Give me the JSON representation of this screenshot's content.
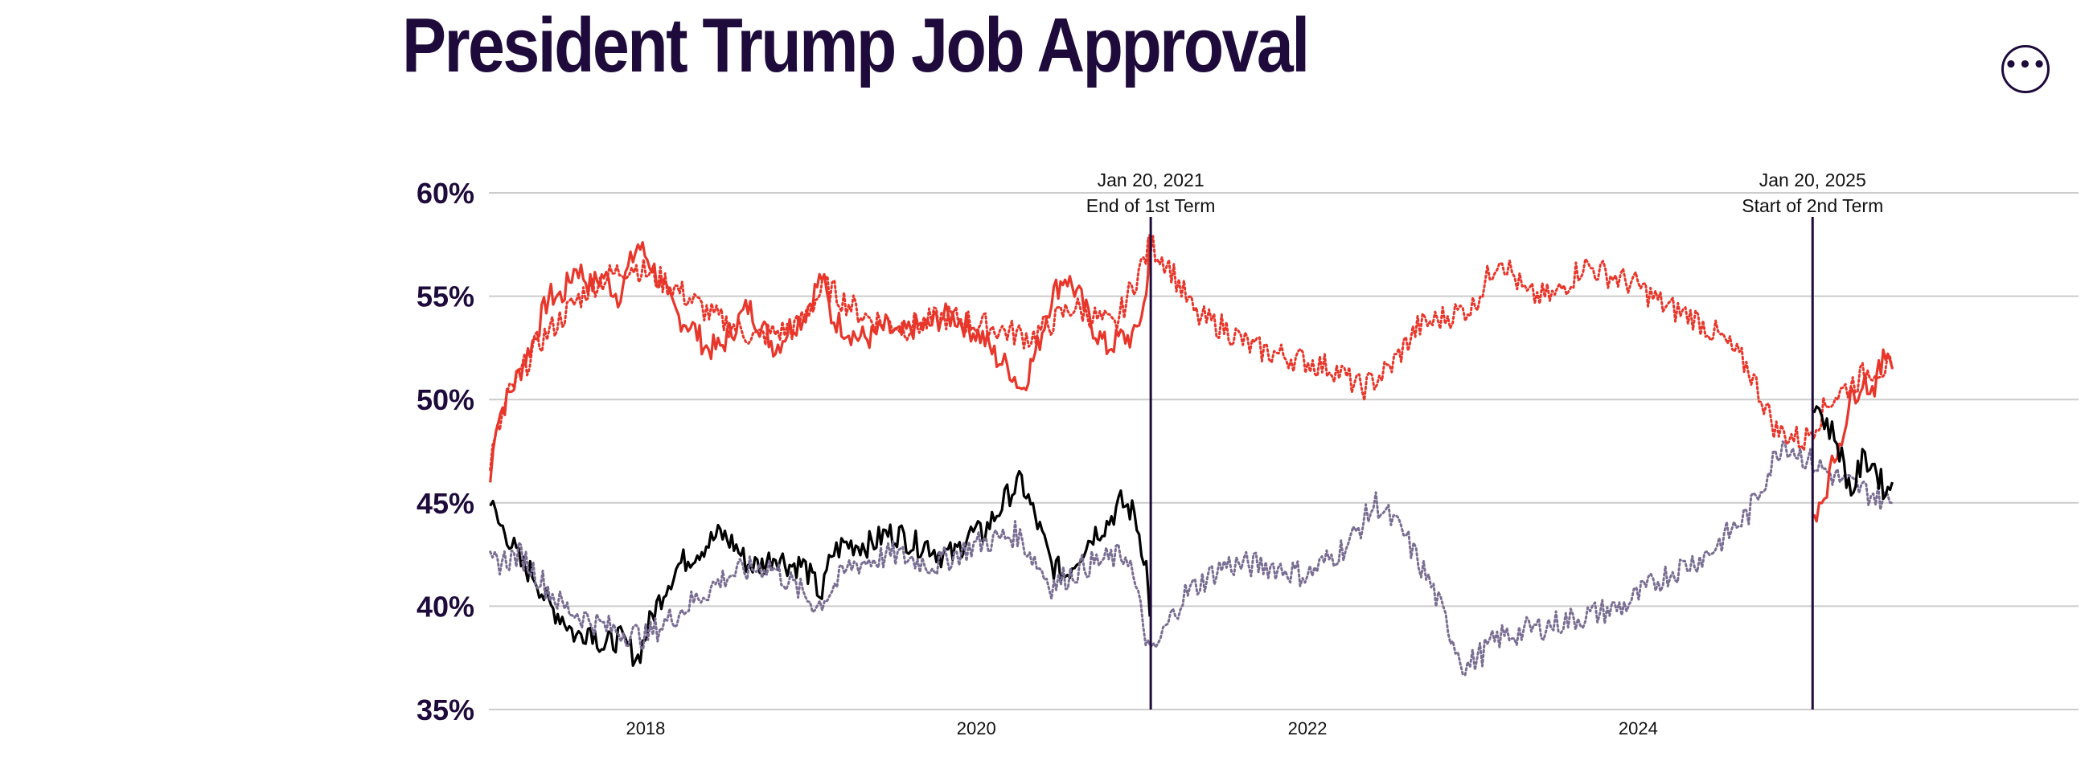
{
  "header": {
    "title": "President Trump Job Approval",
    "menu_icon": "more-horizontal-icon"
  },
  "colors": {
    "disapprove": "#e8362a",
    "approve": "#000000",
    "prior_term": "#7a6f93",
    "grid": "#cccccc",
    "axis_text": "#1e0b3b",
    "marker": "#1e0b3b"
  },
  "chart_data": {
    "type": "line",
    "title": "President Trump Job Approval",
    "xlabel": "",
    "ylabel": "",
    "xlim": [
      "2017-01-20",
      "2026-06-30"
    ],
    "ylim": [
      35,
      60
    ],
    "y_ticks": [
      {
        "value": 60,
        "label": "60%"
      },
      {
        "value": 55,
        "label": "55%"
      },
      {
        "value": 50,
        "label": "50%"
      },
      {
        "value": 45,
        "label": "45%"
      },
      {
        "value": 40,
        "label": "40%"
      },
      {
        "value": 35,
        "label": "35%"
      }
    ],
    "x_ticks": [
      {
        "value": "2018-01-01",
        "label": "2018"
      },
      {
        "value": "2020-01-01",
        "label": "2020"
      },
      {
        "value": "2022-01-01",
        "label": "2022"
      },
      {
        "value": "2024-01-01",
        "label": "2024"
      }
    ],
    "grid": true,
    "annotations": [
      {
        "x": "2021-01-20",
        "line1": "Jan 20, 2021",
        "line2": "End of 1st Term"
      },
      {
        "x": "2025-01-20",
        "line1": "Jan 20, 2025",
        "line2": "Start of 2nd Term"
      }
    ],
    "series": [
      {
        "style": "solid",
        "color": "#e8362a",
        "points": [
          [
            "2017-01-23",
            46
          ],
          [
            "2017-02-05",
            49
          ],
          [
            "2017-03-01",
            50
          ],
          [
            "2017-04-01",
            51.5
          ],
          [
            "2017-05-01",
            53
          ],
          [
            "2017-06-01",
            55
          ],
          [
            "2017-07-01",
            55
          ],
          [
            "2017-08-01",
            56.5
          ],
          [
            "2017-09-01",
            55.5
          ],
          [
            "2017-10-01",
            56
          ],
          [
            "2017-11-01",
            55
          ],
          [
            "2017-12-15",
            57.5
          ],
          [
            "2018-01-15",
            56.5
          ],
          [
            "2018-02-15",
            55
          ],
          [
            "2018-03-15",
            54
          ],
          [
            "2018-04-15",
            53.5
          ],
          [
            "2018-05-15",
            52.5
          ],
          [
            "2018-06-15",
            52.5
          ],
          [
            "2018-07-15",
            53.5
          ],
          [
            "2018-08-15",
            54.5
          ],
          [
            "2018-09-15",
            53.5
          ],
          [
            "2018-10-15",
            52.5
          ],
          [
            "2018-11-15",
            53.5
          ],
          [
            "2018-12-15",
            54
          ],
          [
            "2019-01-25",
            56
          ],
          [
            "2019-02-15",
            54
          ],
          [
            "2019-03-15",
            53.5
          ],
          [
            "2019-04-15",
            53
          ],
          [
            "2019-05-15",
            53
          ],
          [
            "2019-06-15",
            53.5
          ],
          [
            "2019-07-15",
            53
          ],
          [
            "2019-08-15",
            53.5
          ],
          [
            "2019-09-15",
            53.5
          ],
          [
            "2019-10-15",
            54
          ],
          [
            "2019-11-15",
            54
          ],
          [
            "2019-12-15",
            53.5
          ],
          [
            "2020-01-15",
            53
          ],
          [
            "2020-02-15",
            52
          ],
          [
            "2020-03-15",
            51.5
          ],
          [
            "2020-04-10",
            50.5
          ],
          [
            "2020-05-15",
            52.5
          ],
          [
            "2020-06-15",
            55
          ],
          [
            "2020-07-15",
            56
          ],
          [
            "2020-08-15",
            55
          ],
          [
            "2020-09-15",
            53.5
          ],
          [
            "2020-10-15",
            52.5
          ],
          [
            "2020-11-15",
            53
          ],
          [
            "2020-12-15",
            53
          ],
          [
            "2021-01-10",
            55
          ],
          [
            "2021-01-18",
            58
          ]
        ]
      },
      {
        "style": "solid",
        "color": "#000000",
        "points": [
          [
            "2017-01-23",
            45
          ],
          [
            "2017-02-10",
            44
          ],
          [
            "2017-03-01",
            43.5
          ],
          [
            "2017-04-01",
            42
          ],
          [
            "2017-05-01",
            41.5
          ],
          [
            "2017-06-01",
            40
          ],
          [
            "2017-07-01",
            39.5
          ],
          [
            "2017-08-01",
            38.5
          ],
          [
            "2017-09-01",
            39
          ],
          [
            "2017-10-01",
            38
          ],
          [
            "2017-11-01",
            38.5
          ],
          [
            "2017-12-15",
            37.5
          ],
          [
            "2018-01-15",
            39.5
          ],
          [
            "2018-02-15",
            41
          ],
          [
            "2018-03-15",
            42
          ],
          [
            "2018-04-15",
            42.5
          ],
          [
            "2018-05-15",
            43
          ],
          [
            "2018-06-15",
            43.5
          ],
          [
            "2018-07-15",
            43
          ],
          [
            "2018-08-15",
            42
          ],
          [
            "2018-09-15",
            42
          ],
          [
            "2018-10-15",
            42.5
          ],
          [
            "2018-11-15",
            42
          ],
          [
            "2018-12-15",
            42
          ],
          [
            "2019-01-25",
            40.5
          ],
          [
            "2019-02-15",
            42.5
          ],
          [
            "2019-03-15",
            43
          ],
          [
            "2019-04-15",
            43
          ],
          [
            "2019-05-15",
            43
          ],
          [
            "2019-06-15",
            43.5
          ],
          [
            "2019-07-15",
            43.5
          ],
          [
            "2019-08-15",
            43
          ],
          [
            "2019-09-15",
            43
          ],
          [
            "2019-10-15",
            42.5
          ],
          [
            "2019-11-15",
            42.5
          ],
          [
            "2019-12-15",
            43.5
          ],
          [
            "2020-01-15",
            43.5
          ],
          [
            "2020-02-15",
            44.5
          ],
          [
            "2020-03-15",
            45.5
          ],
          [
            "2020-04-10",
            46
          ],
          [
            "2020-05-15",
            44
          ],
          [
            "2020-06-15",
            42
          ],
          [
            "2020-07-15",
            41.5
          ],
          [
            "2020-08-15",
            42.5
          ],
          [
            "2020-09-15",
            43.5
          ],
          [
            "2020-10-15",
            44
          ],
          [
            "2020-11-15",
            45
          ],
          [
            "2020-12-15",
            44.5
          ],
          [
            "2021-01-10",
            42
          ],
          [
            "2021-01-18",
            39.5
          ]
        ]
      },
      {
        "style": "dotted",
        "color": "#e8362a",
        "points": [
          [
            "2017-01-23",
            47
          ],
          [
            "2017-03-01",
            50
          ],
          [
            "2017-05-01",
            52.5
          ],
          [
            "2017-07-01",
            54
          ],
          [
            "2017-09-01",
            55.5
          ],
          [
            "2017-12-01",
            56.5
          ],
          [
            "2018-03-01",
            55.5
          ],
          [
            "2018-06-01",
            54
          ],
          [
            "2018-09-01",
            53
          ],
          [
            "2018-12-01",
            53.5
          ],
          [
            "2019-02-01",
            55.5
          ],
          [
            "2019-05-01",
            54
          ],
          [
            "2019-08-01",
            53.5
          ],
          [
            "2019-11-01",
            54
          ],
          [
            "2020-02-01",
            53.5
          ],
          [
            "2020-05-01",
            53
          ],
          [
            "2020-08-01",
            54.5
          ],
          [
            "2020-11-01",
            53.5
          ],
          [
            "2021-01-20",
            57.5
          ],
          [
            "2021-03-01",
            56.5
          ],
          [
            "2021-05-01",
            54
          ],
          [
            "2021-07-01",
            53.5
          ],
          [
            "2021-09-01",
            52.5
          ],
          [
            "2021-12-01",
            52
          ],
          [
            "2022-03-01",
            51.5
          ],
          [
            "2022-05-01",
            50.5
          ],
          [
            "2022-07-01",
            51.5
          ],
          [
            "2022-09-01",
            53.5
          ],
          [
            "2022-11-01",
            54
          ],
          [
            "2023-01-01",
            54.5
          ],
          [
            "2023-03-01",
            57
          ],
          [
            "2023-05-01",
            55
          ],
          [
            "2023-07-01",
            55
          ],
          [
            "2023-09-01",
            56.5
          ],
          [
            "2023-11-01",
            56
          ],
          [
            "2024-01-01",
            55.5
          ],
          [
            "2024-03-01",
            54.5
          ],
          [
            "2024-05-01",
            54
          ],
          [
            "2024-07-01",
            53
          ],
          [
            "2024-09-01",
            51.5
          ],
          [
            "2024-11-01",
            48.5
          ],
          [
            "2025-01-01",
            48
          ],
          [
            "2025-03-01",
            50
          ],
          [
            "2025-06-01",
            51.5
          ],
          [
            "2025-07-15",
            51.5
          ]
        ]
      },
      {
        "style": "dotted",
        "color": "#7a6f93",
        "points": [
          [
            "2017-01-23",
            42
          ],
          [
            "2017-04-01",
            42.5
          ],
          [
            "2017-07-01",
            40
          ],
          [
            "2017-10-01",
            39
          ],
          [
            "2018-01-01",
            38.5
          ],
          [
            "2018-04-01",
            40
          ],
          [
            "2018-07-01",
            41.5
          ],
          [
            "2018-10-01",
            42
          ],
          [
            "2019-01-15",
            40
          ],
          [
            "2019-04-01",
            42
          ],
          [
            "2019-07-01",
            42.5
          ],
          [
            "2019-10-01",
            42
          ],
          [
            "2020-01-01",
            43
          ],
          [
            "2020-04-01",
            43.5
          ],
          [
            "2020-06-15",
            41
          ],
          [
            "2020-09-01",
            42
          ],
          [
            "2020-12-01",
            42.5
          ],
          [
            "2021-01-20",
            37.5
          ],
          [
            "2021-04-01",
            40.5
          ],
          [
            "2021-07-01",
            42
          ],
          [
            "2021-10-01",
            42
          ],
          [
            "2022-01-01",
            41.5
          ],
          [
            "2022-04-01",
            43
          ],
          [
            "2022-06-01",
            45
          ],
          [
            "2022-08-01",
            43.5
          ],
          [
            "2022-10-01",
            41
          ],
          [
            "2022-12-15",
            37
          ],
          [
            "2023-03-01",
            38.5
          ],
          [
            "2023-06-01",
            39
          ],
          [
            "2023-09-01",
            39.5
          ],
          [
            "2023-12-01",
            40
          ],
          [
            "2024-03-01",
            41.5
          ],
          [
            "2024-06-01",
            42.5
          ],
          [
            "2024-09-01",
            44.5
          ],
          [
            "2024-11-15",
            48
          ],
          [
            "2025-01-15",
            47
          ],
          [
            "2025-04-01",
            46
          ],
          [
            "2025-07-15",
            45
          ]
        ]
      },
      {
        "style": "solid",
        "color": "#e8362a",
        "points": [
          [
            "2025-01-23",
            44.5
          ],
          [
            "2025-02-15",
            45.5
          ],
          [
            "2025-03-15",
            47.5
          ],
          [
            "2025-04-15",
            50
          ],
          [
            "2025-05-10",
            51
          ],
          [
            "2025-06-01",
            50.5
          ],
          [
            "2025-06-20",
            51.5
          ],
          [
            "2025-07-05",
            52.5
          ],
          [
            "2025-07-15",
            51.5
          ]
        ]
      },
      {
        "style": "solid",
        "color": "#000000",
        "points": [
          [
            "2025-01-23",
            50
          ],
          [
            "2025-02-15",
            49
          ],
          [
            "2025-03-15",
            48
          ],
          [
            "2025-04-15",
            45.5
          ],
          [
            "2025-05-10",
            47
          ],
          [
            "2025-06-01",
            47
          ],
          [
            "2025-06-20",
            46
          ],
          [
            "2025-07-05",
            45.5
          ],
          [
            "2025-07-15",
            46
          ]
        ]
      }
    ]
  }
}
